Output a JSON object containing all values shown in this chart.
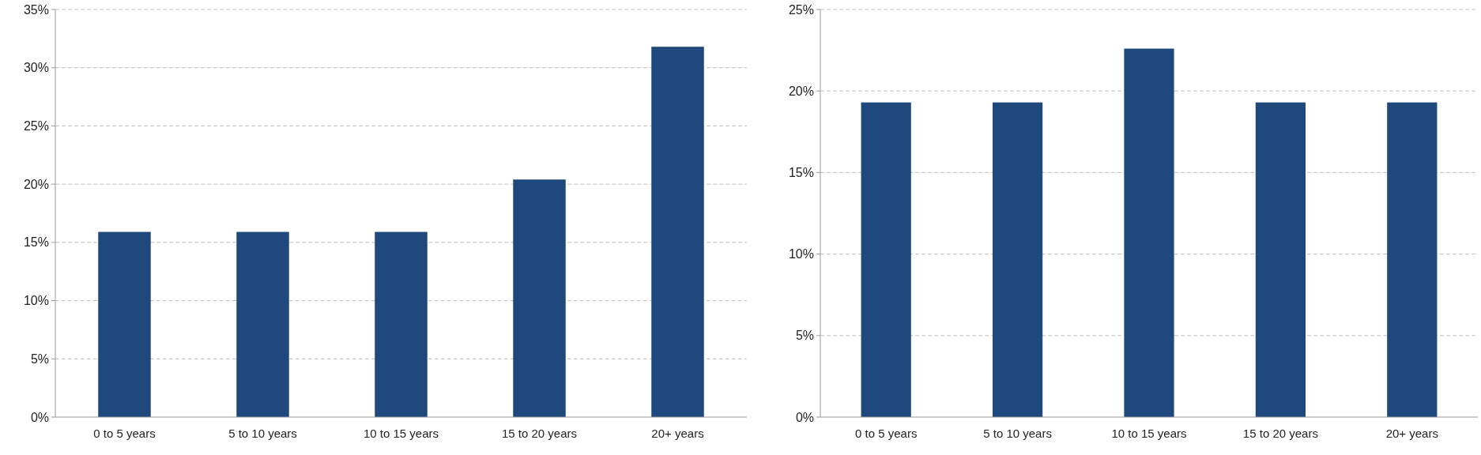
{
  "chart_data": [
    {
      "type": "bar",
      "categories": [
        "0 to 5 years",
        "5 to 10 years",
        "10 to 15 years",
        "15 to 20 years",
        "20+ years"
      ],
      "values": [
        15.9,
        15.9,
        15.9,
        20.4,
        31.8
      ],
      "color": "#1f497d",
      "ylim": [
        0,
        35
      ],
      "yticks": [
        {
          "value": 0,
          "label": "0%"
        },
        {
          "value": 5,
          "label": "5%"
        },
        {
          "value": 10,
          "label": "10%"
        },
        {
          "value": 15,
          "label": "15%"
        },
        {
          "value": 20,
          "label": "20%"
        },
        {
          "value": 25,
          "label": "25%"
        },
        {
          "value": 30,
          "label": "30%"
        },
        {
          "value": 35,
          "label": "35%"
        }
      ],
      "grid": "y"
    },
    {
      "type": "bar",
      "categories": [
        "0 to 5 years",
        "5 to 10 years",
        "10 to 15 years",
        "15 to 20 years",
        "20+ years"
      ],
      "values": [
        19.3,
        19.3,
        22.6,
        19.3,
        19.3
      ],
      "color": "#1f497d",
      "ylim": [
        0,
        25
      ],
      "yticks": [
        {
          "value": 0,
          "label": "0%"
        },
        {
          "value": 5,
          "label": "5%"
        },
        {
          "value": 10,
          "label": "10%"
        },
        {
          "value": 15,
          "label": "15%"
        },
        {
          "value": 20,
          "label": "20%"
        },
        {
          "value": 25,
          "label": "25%"
        }
      ],
      "grid": "y"
    }
  ]
}
